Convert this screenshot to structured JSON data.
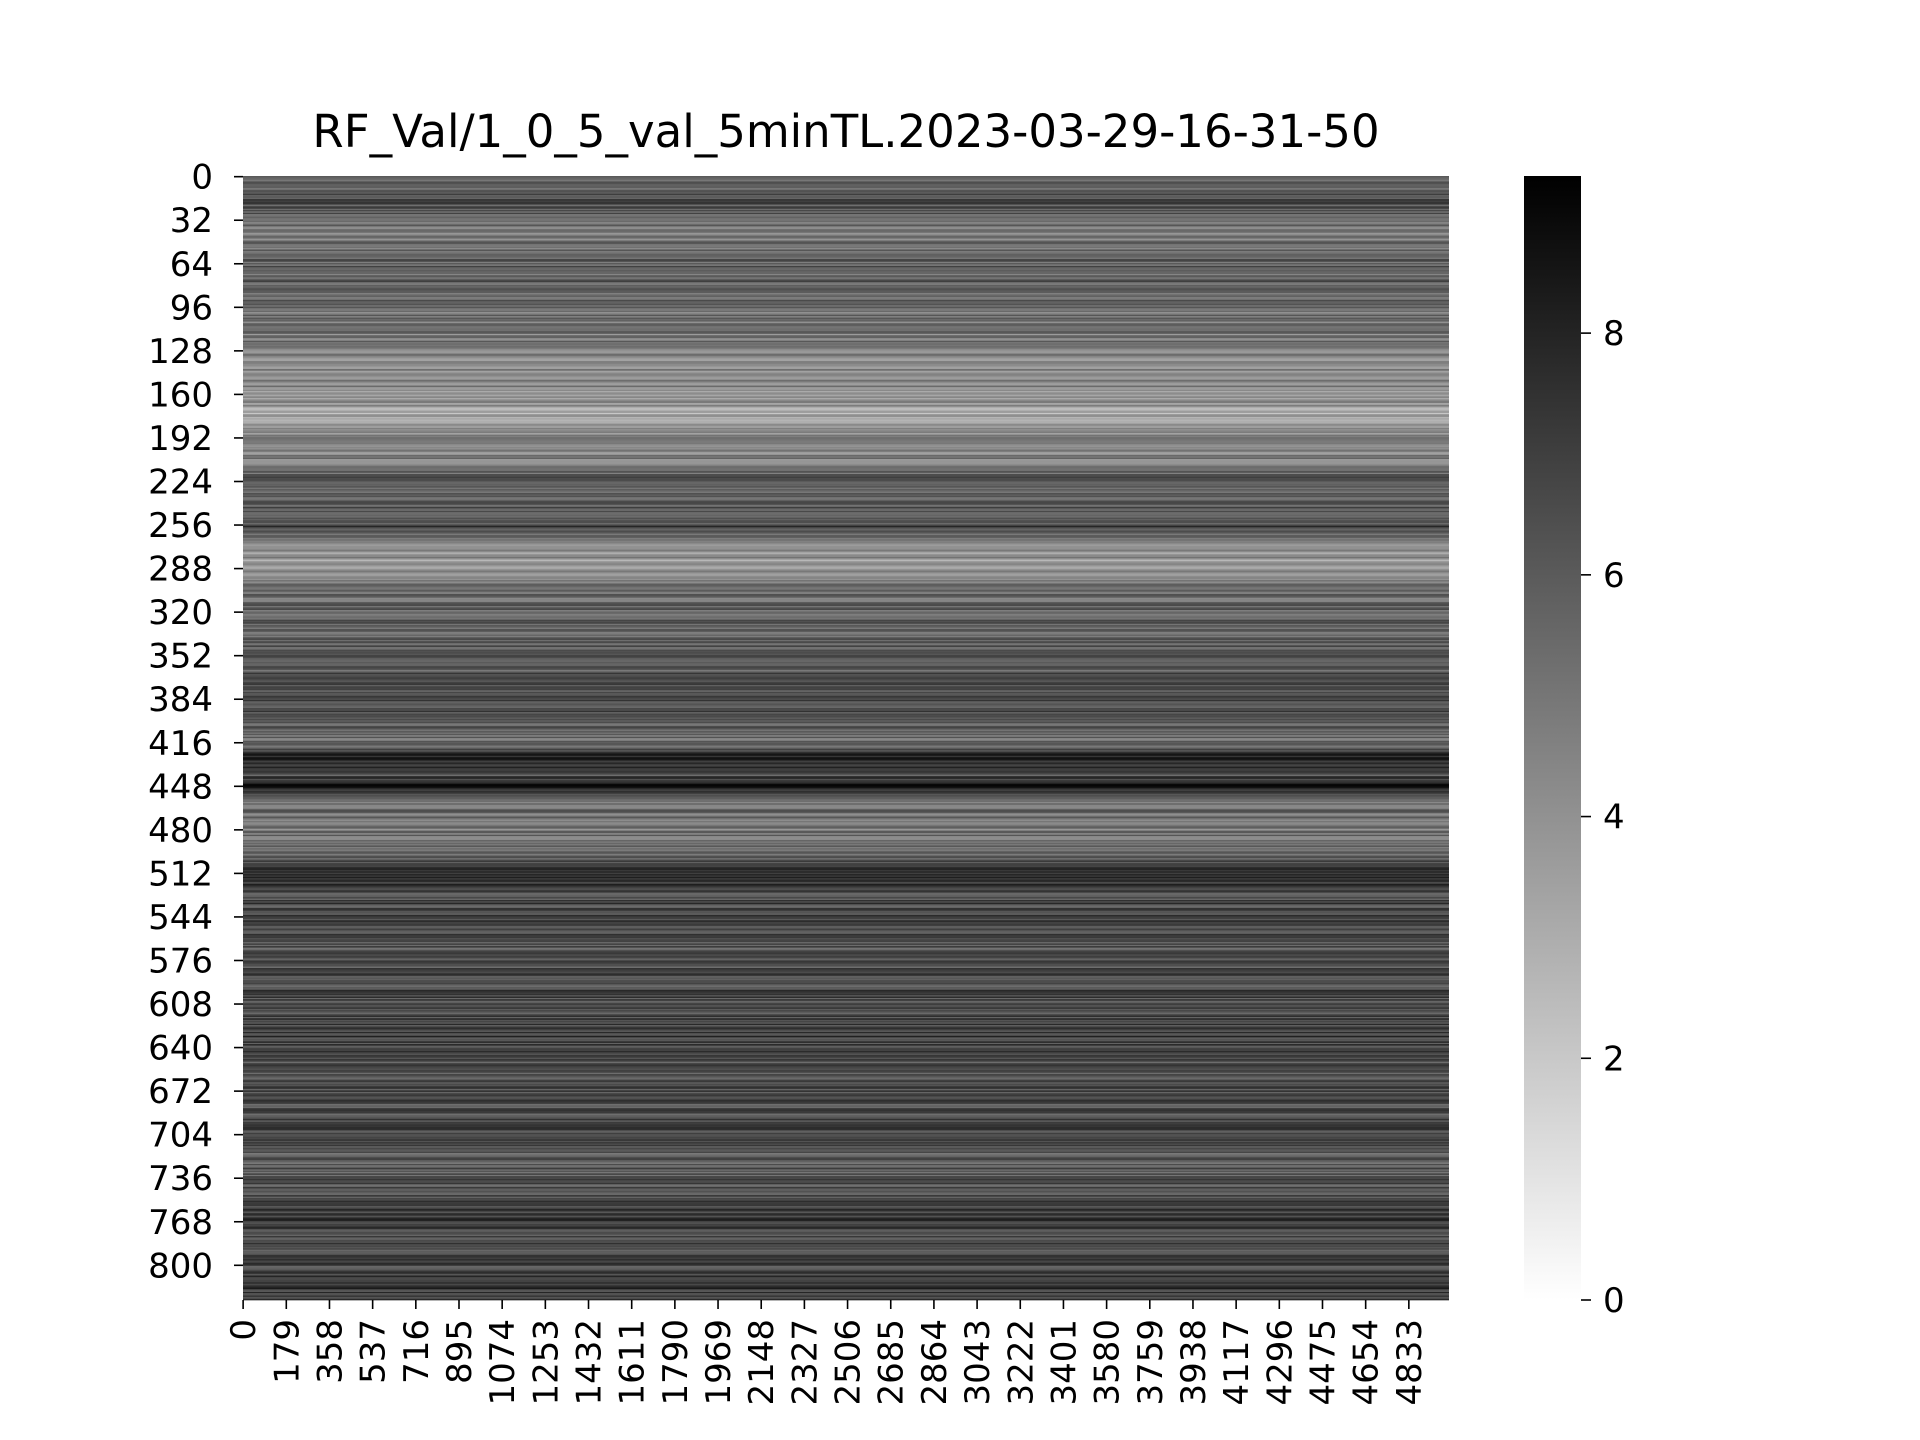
{
  "chart_data": {
    "type": "heatmap",
    "title": "RF_Val/1_0_5_val_5minTL.2023-03-29-16-31-50",
    "xlabel": "",
    "ylabel": "",
    "colormap": "Greys",
    "color_min": "#ffffff",
    "color_max": "#000000",
    "n_rows": 826,
    "n_cols": 5000,
    "y_ticks": [
      "0",
      "32",
      "64",
      "96",
      "128",
      "160",
      "192",
      "224",
      "256",
      "288",
      "320",
      "352",
      "384",
      "416",
      "448",
      "480",
      "512",
      "544",
      "576",
      "608",
      "640",
      "672",
      "704",
      "736",
      "768",
      "800"
    ],
    "x_ticks": [
      "0",
      "179",
      "358",
      "537",
      "716",
      "895",
      "1074",
      "1253",
      "1432",
      "1611",
      "1790",
      "1969",
      "2148",
      "2327",
      "2506",
      "2685",
      "2864",
      "3043",
      "3222",
      "3401",
      "3580",
      "3759",
      "3938",
      "4117",
      "4296",
      "4475",
      "4654",
      "4833"
    ],
    "colorbar": {
      "range": [
        0,
        9.3
      ],
      "ticks": [
        "0",
        "2",
        "4",
        "6",
        "8"
      ]
    },
    "row_value_profile": [
      [
        0,
        5.4
      ],
      [
        20,
        6.5
      ],
      [
        40,
        4.6
      ],
      [
        60,
        5.6
      ],
      [
        80,
        5.8
      ],
      [
        100,
        5.2
      ],
      [
        120,
        4.8
      ],
      [
        140,
        4.6
      ],
      [
        160,
        4.2
      ],
      [
        175,
        3.0
      ],
      [
        190,
        4.4
      ],
      [
        200,
        4.0
      ],
      [
        220,
        5.8
      ],
      [
        240,
        5.6
      ],
      [
        256,
        6.8
      ],
      [
        270,
        4.8
      ],
      [
        285,
        3.4
      ],
      [
        300,
        5.0
      ],
      [
        320,
        5.6
      ],
      [
        340,
        5.8
      ],
      [
        352,
        6.2
      ],
      [
        370,
        6.0
      ],
      [
        384,
        6.6
      ],
      [
        400,
        6.0
      ],
      [
        416,
        5.0
      ],
      [
        425,
        7.8
      ],
      [
        440,
        6.4
      ],
      [
        448,
        8.6
      ],
      [
        460,
        5.4
      ],
      [
        480,
        4.8
      ],
      [
        500,
        6.0
      ],
      [
        512,
        7.4
      ],
      [
        530,
        6.4
      ],
      [
        544,
        7.0
      ],
      [
        560,
        6.2
      ],
      [
        576,
        6.4
      ],
      [
        600,
        6.6
      ],
      [
        620,
        6.8
      ],
      [
        640,
        7.0
      ],
      [
        660,
        6.2
      ],
      [
        672,
        6.6
      ],
      [
        690,
        6.4
      ],
      [
        704,
        6.6
      ],
      [
        720,
        5.8
      ],
      [
        736,
        6.2
      ],
      [
        752,
        6.4
      ],
      [
        768,
        7.4
      ],
      [
        780,
        6.8
      ],
      [
        800,
        6.8
      ],
      [
        815,
        7.2
      ],
      [
        825,
        6.6
      ]
    ]
  }
}
